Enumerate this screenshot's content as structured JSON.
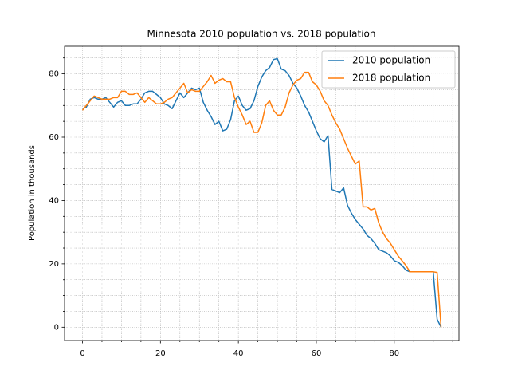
{
  "chart_data": {
    "type": "line",
    "title": "Minnesota 2010 population vs. 2018 population",
    "y_label": "Population in thousands",
    "x": [
      0,
      1,
      2,
      3,
      4,
      5,
      6,
      7,
      8,
      9,
      10,
      11,
      12,
      13,
      14,
      15,
      16,
      17,
      18,
      19,
      20,
      21,
      22,
      23,
      24,
      25,
      26,
      27,
      28,
      29,
      30,
      31,
      32,
      33,
      34,
      35,
      36,
      37,
      38,
      39,
      40,
      41,
      42,
      43,
      44,
      45,
      46,
      47,
      48,
      49,
      50,
      51,
      52,
      53,
      54,
      55,
      56,
      57,
      58,
      59,
      60,
      61,
      62,
      63,
      64,
      65,
      66,
      67,
      68,
      69,
      70,
      71,
      72,
      73,
      74,
      75,
      76,
      77,
      78,
      79,
      80,
      81,
      82,
      83,
      84,
      85,
      86,
      87,
      88,
      89,
      90,
      91,
      92
    ],
    "series": [
      {
        "name": "2010 population",
        "color": "#1f77b4",
        "values": [
          69,
          69.5,
          72,
          72.5,
          72,
          72,
          72.5,
          71,
          69.5,
          71,
          71.5,
          70,
          70,
          70.5,
          70.5,
          72,
          74,
          74.5,
          74.5,
          73.5,
          72.5,
          70.5,
          70,
          69,
          71.5,
          74,
          72.5,
          74,
          75.5,
          75,
          75.5,
          71,
          68.5,
          66.5,
          64,
          65,
          62,
          62.5,
          65.5,
          71.5,
          73,
          70,
          68.5,
          69,
          71.5,
          76,
          79,
          81,
          82,
          84.5,
          84.8,
          81.5,
          81,
          79.5,
          77,
          75.5,
          73,
          70,
          68,
          65,
          62,
          59.5,
          58.5,
          60.5,
          43.5,
          43,
          42.5,
          44,
          38.5,
          36,
          34,
          32.5,
          31,
          29,
          28,
          26.5,
          24.5,
          24,
          23.5,
          22.5,
          21,
          20.5,
          19.5,
          18,
          17.5,
          17.5,
          17.5,
          17.5,
          17.5,
          17.5,
          17.5,
          2.5,
          0
        ]
      },
      {
        "name": "2018 population",
        "color": "#ff7f0e",
        "values": [
          68.5,
          70,
          71.5,
          73,
          72.5,
          72,
          72,
          72,
          72.5,
          72.5,
          74.5,
          74.5,
          73.5,
          73.5,
          74,
          72.5,
          71,
          72.5,
          71.5,
          70.5,
          70.5,
          71,
          72,
          72.5,
          74,
          75.5,
          77,
          74,
          75,
          74.5,
          74.5,
          76,
          77.5,
          79.5,
          77,
          78,
          78.5,
          77.5,
          77.5,
          72.5,
          69.5,
          67,
          64,
          65,
          61.5,
          61.5,
          64.5,
          70,
          71.5,
          68.5,
          67,
          67,
          69.5,
          74,
          76.5,
          78,
          78.5,
          80.5,
          80.5,
          77.5,
          76.5,
          74.5,
          71.5,
          70,
          67,
          64.5,
          62.5,
          59.5,
          56.5,
          54,
          51.5,
          52.5,
          38,
          38,
          37,
          37.5,
          33,
          30,
          28,
          26.5,
          24.5,
          22.5,
          21,
          19.5,
          17.5,
          17.5,
          17.5,
          17.5,
          17.5,
          17.5,
          17.5,
          17.3,
          0
        ]
      }
    ],
    "xlim": [
      -4.6,
      96.6
    ],
    "ylim": [
      -4.2,
      88.7
    ],
    "xticks": [
      0,
      20,
      40,
      60,
      80
    ],
    "yticks": [
      0,
      20,
      40,
      60,
      80
    ],
    "xminorticks": [
      5,
      10,
      15,
      25,
      30,
      35,
      45,
      50,
      55,
      65,
      70,
      75,
      85,
      90,
      95
    ],
    "yminorticks": [
      5,
      10,
      15,
      25,
      30,
      35,
      45,
      50,
      55,
      65,
      70,
      75,
      85
    ],
    "grid": true,
    "legend": "upper right"
  }
}
